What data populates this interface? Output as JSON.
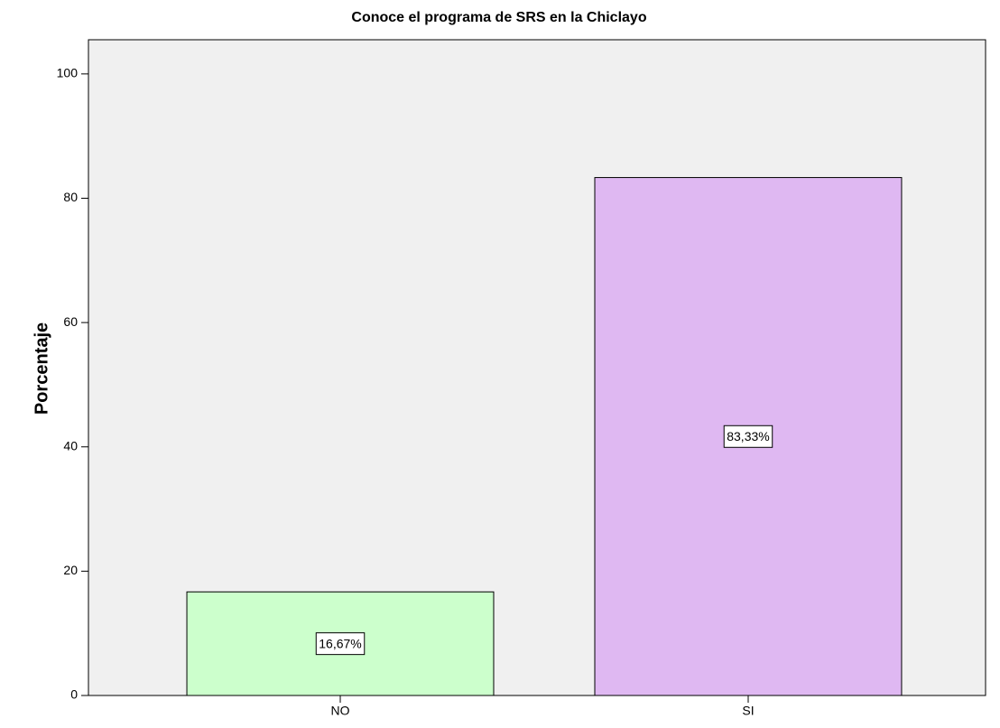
{
  "chart_data": {
    "type": "bar",
    "title": "Conoce el programa de SRS en la Chiclayo",
    "y_label": "Porcentaje",
    "categories": [
      "NO",
      "SI"
    ],
    "values": [
      16.67,
      83.33
    ],
    "value_labels": [
      "16,67%",
      "83,33%"
    ],
    "colors": [
      "#ccffcc",
      "#dfb8f2"
    ],
    "ylim": [
      0,
      105.5
    ],
    "yticks": [
      0,
      20,
      40,
      60,
      80,
      100
    ]
  }
}
